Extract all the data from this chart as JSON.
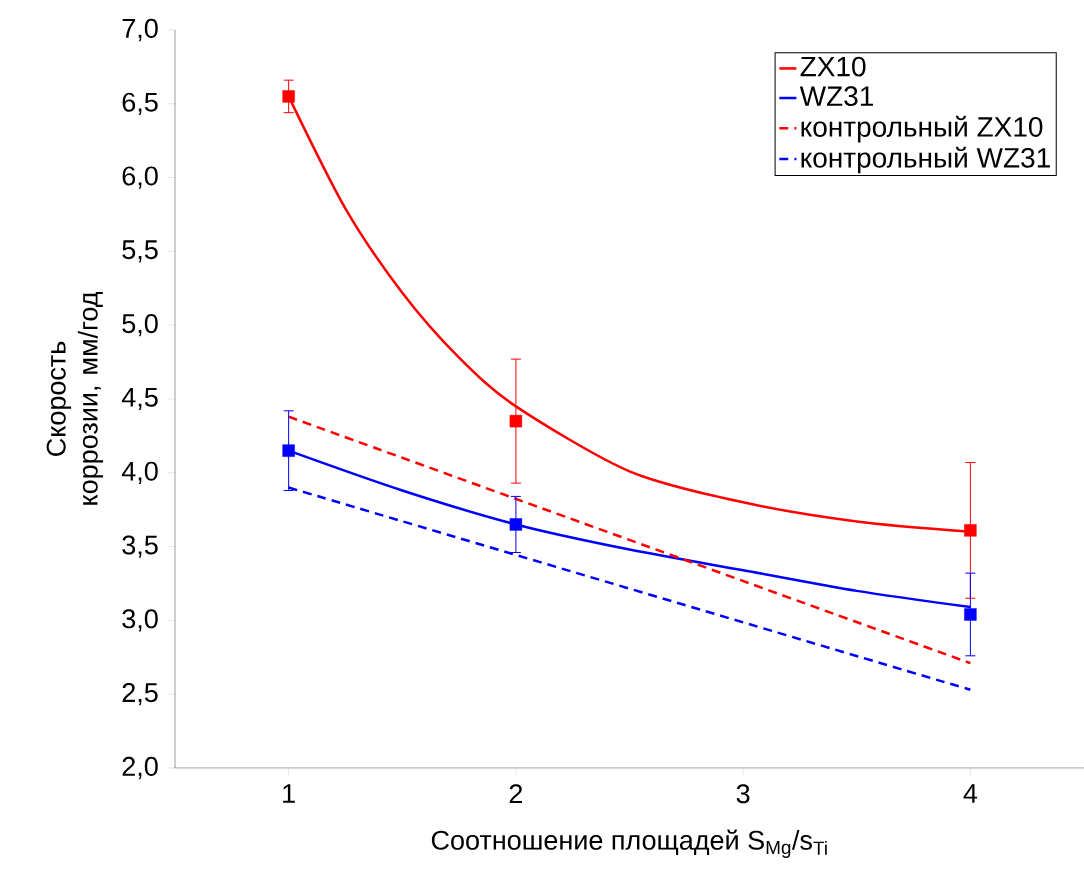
{
  "chart_data": {
    "type": "line",
    "xlabel": "Соотношение площадей S$_{Mg}$/s$_{Ti}$",
    "ylabel": "Скорость коррозии, мм/год",
    "xlim": [
      0.5,
      4.5
    ],
    "ylim": [
      2.0,
      7.0
    ],
    "xticks": [
      1,
      2,
      3,
      4
    ],
    "yticks": [
      {
        "value": 2.0,
        "label": "2,0"
      },
      {
        "value": 2.5,
        "label": "2,5"
      },
      {
        "value": 3.0,
        "label": "3,0"
      },
      {
        "value": 3.5,
        "label": "3,5"
      },
      {
        "value": 4.0,
        "label": "4,0"
      },
      {
        "value": 4.5,
        "label": "4,5"
      },
      {
        "value": 5.0,
        "label": "5,0"
      },
      {
        "value": 5.5,
        "label": "5,5"
      },
      {
        "value": 6.0,
        "label": "6,0"
      },
      {
        "value": 6.5,
        "label": "6,5"
      },
      {
        "value": 7.0,
        "label": "7,0"
      }
    ],
    "grid": false,
    "legend": "top right",
    "series": [
      {
        "name": "ZX10",
        "color": "#ff0000",
        "marker": "none",
        "line_style": "solid",
        "x": [
          1,
          1.25,
          1.5,
          1.75,
          2,
          2.5,
          3,
          3.5,
          4
        ],
        "values": [
          6.55,
          5.79,
          5.22,
          4.78,
          4.45,
          4.01,
          3.8,
          3.67,
          3.6
        ]
      },
      {
        "name": "WZ31",
        "color": "#0000ff",
        "marker": "none",
        "line_style": "solid",
        "x": [
          1,
          1.5,
          2,
          2.5,
          3,
          3.5,
          4
        ],
        "values": [
          4.15,
          3.88,
          3.65,
          3.48,
          3.34,
          3.2,
          3.09
        ]
      },
      {
        "name": "контрольный ZX10",
        "color": "#ff0000",
        "marker": "none",
        "line_style": "dashed",
        "x": [
          1,
          4
        ],
        "values": [
          4.38,
          2.71
        ]
      },
      {
        "name": "контрольный WZ31",
        "color": "#0000ff",
        "marker": "none",
        "line_style": "dashed",
        "x": [
          1,
          4
        ],
        "values": [
          3.9,
          2.53
        ]
      },
      {
        "type": "scatter",
        "color": "#ff0000",
        "marker": "square",
        "x": [
          1,
          2,
          4
        ],
        "values": [
          6.55,
          4.35,
          3.61
        ],
        "errors": [
          0.11,
          0.42,
          0.46
        ]
      },
      {
        "type": "scatter",
        "color": "#0000ff",
        "marker": "square",
        "x": [
          1,
          2,
          4
        ],
        "values": [
          4.15,
          3.65,
          3.04
        ],
        "errors": [
          0.27,
          0.19,
          0.28
        ]
      }
    ]
  }
}
